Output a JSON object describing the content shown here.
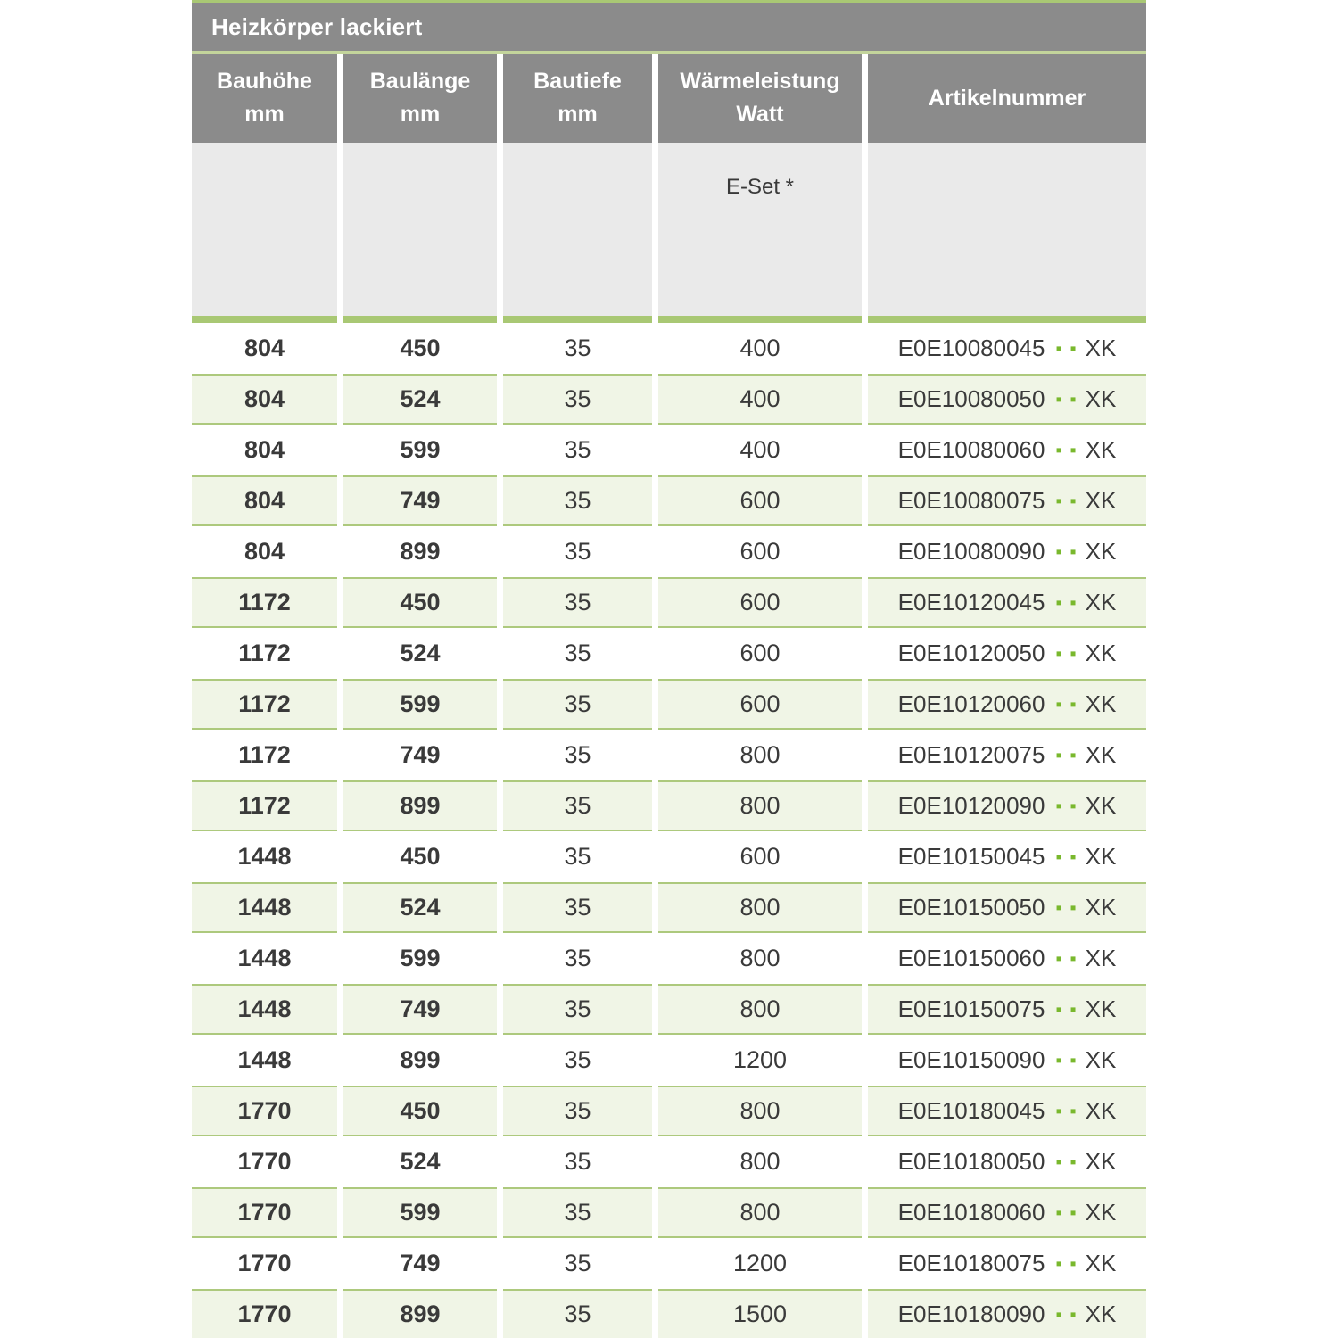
{
  "table": {
    "title": "Heizkörper lackiert",
    "columns": [
      {
        "key": "bauhoehe",
        "label": "Bauhöhe",
        "unit": "mm"
      },
      {
        "key": "baulaenge",
        "label": "Baulänge",
        "unit": "mm"
      },
      {
        "key": "bautiefe",
        "label": "Bautiefe",
        "unit": "mm"
      },
      {
        "key": "watt",
        "label": "Wärmeleistung",
        "unit": "Watt"
      },
      {
        "key": "artikelnummer",
        "label": "Artikelnummer",
        "unit": ""
      }
    ],
    "subheader": {
      "eset_label": "E-Set *"
    },
    "artikel_dots": "▪▪",
    "artikel_suffix": "XK",
    "rows": [
      {
        "bauhoehe": "804",
        "baulaenge": "450",
        "bautiefe": "35",
        "watt": "400",
        "artikelnummer": "E0E10080045"
      },
      {
        "bauhoehe": "804",
        "baulaenge": "524",
        "bautiefe": "35",
        "watt": "400",
        "artikelnummer": "E0E10080050"
      },
      {
        "bauhoehe": "804",
        "baulaenge": "599",
        "bautiefe": "35",
        "watt": "400",
        "artikelnummer": "E0E10080060"
      },
      {
        "bauhoehe": "804",
        "baulaenge": "749",
        "bautiefe": "35",
        "watt": "600",
        "artikelnummer": "E0E10080075"
      },
      {
        "bauhoehe": "804",
        "baulaenge": "899",
        "bautiefe": "35",
        "watt": "600",
        "artikelnummer": "E0E10080090"
      },
      {
        "bauhoehe": "1172",
        "baulaenge": "450",
        "bautiefe": "35",
        "watt": "600",
        "artikelnummer": "E0E10120045"
      },
      {
        "bauhoehe": "1172",
        "baulaenge": "524",
        "bautiefe": "35",
        "watt": "600",
        "artikelnummer": "E0E10120050"
      },
      {
        "bauhoehe": "1172",
        "baulaenge": "599",
        "bautiefe": "35",
        "watt": "600",
        "artikelnummer": "E0E10120060"
      },
      {
        "bauhoehe": "1172",
        "baulaenge": "749",
        "bautiefe": "35",
        "watt": "800",
        "artikelnummer": "E0E10120075"
      },
      {
        "bauhoehe": "1172",
        "baulaenge": "899",
        "bautiefe": "35",
        "watt": "800",
        "artikelnummer": "E0E10120090"
      },
      {
        "bauhoehe": "1448",
        "baulaenge": "450",
        "bautiefe": "35",
        "watt": "600",
        "artikelnummer": "E0E10150045"
      },
      {
        "bauhoehe": "1448",
        "baulaenge": "524",
        "bautiefe": "35",
        "watt": "800",
        "artikelnummer": "E0E10150050"
      },
      {
        "bauhoehe": "1448",
        "baulaenge": "599",
        "bautiefe": "35",
        "watt": "800",
        "artikelnummer": "E0E10150060"
      },
      {
        "bauhoehe": "1448",
        "baulaenge": "749",
        "bautiefe": "35",
        "watt": "800",
        "artikelnummer": "E0E10150075"
      },
      {
        "bauhoehe": "1448",
        "baulaenge": "899",
        "bautiefe": "35",
        "watt": "1200",
        "artikelnummer": "E0E10150090"
      },
      {
        "bauhoehe": "1770",
        "baulaenge": "450",
        "bautiefe": "35",
        "watt": "800",
        "artikelnummer": "E0E10180045"
      },
      {
        "bauhoehe": "1770",
        "baulaenge": "524",
        "bautiefe": "35",
        "watt": "800",
        "artikelnummer": "E0E10180050"
      },
      {
        "bauhoehe": "1770",
        "baulaenge": "599",
        "bautiefe": "35",
        "watt": "800",
        "artikelnummer": "E0E10180060"
      },
      {
        "bauhoehe": "1770",
        "baulaenge": "749",
        "bautiefe": "35",
        "watt": "1200",
        "artikelnummer": "E0E10180075"
      },
      {
        "bauhoehe": "1770",
        "baulaenge": "899",
        "bautiefe": "35",
        "watt": "1500",
        "artikelnummer": "E0E10180090"
      }
    ]
  },
  "colors": {
    "header_gray": "#8b8b8b",
    "subheader_gray": "#eaeaea",
    "accent_green": "#a9c874",
    "pale_green_line": "#c3d49b",
    "row_green": "#f0f5e6",
    "row_border_green": "#adc97d",
    "dot_green": "#79b82d",
    "text_dark": "#3a3a3a",
    "header_text": "#ffffff"
  }
}
